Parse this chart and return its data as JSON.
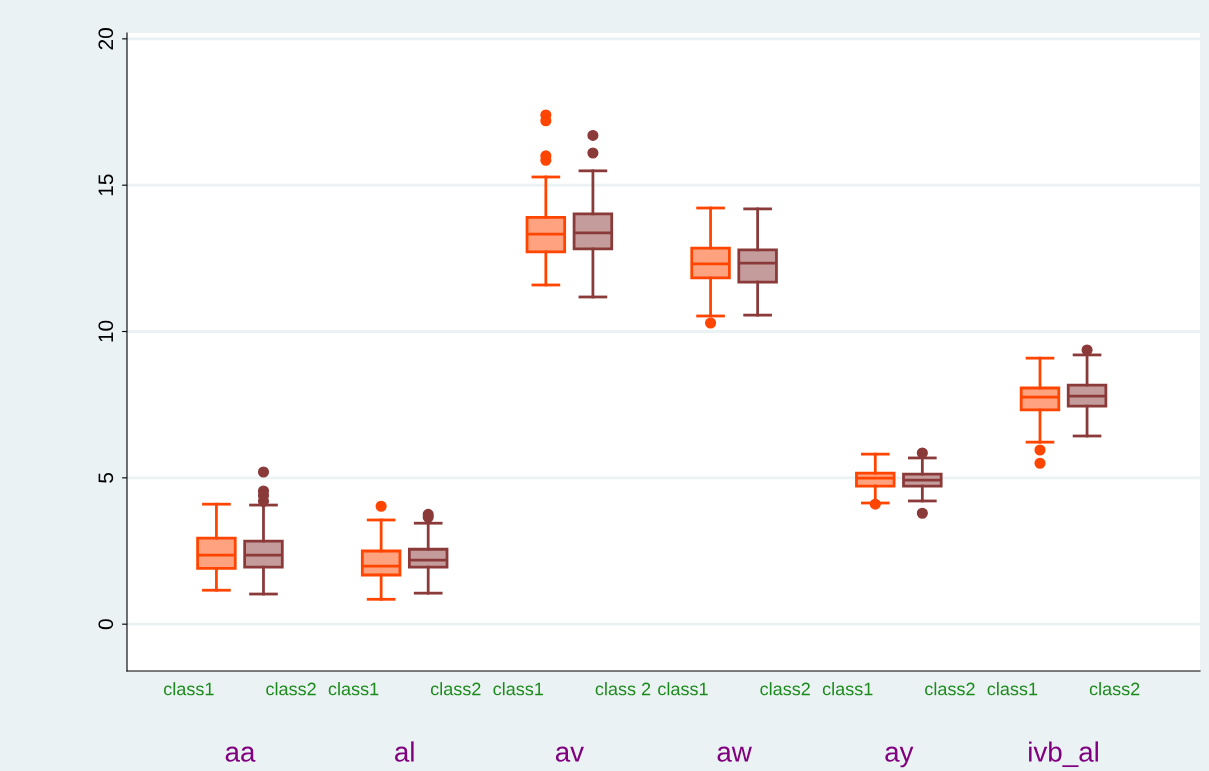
{
  "chart_data": {
    "type": "box",
    "categories": [
      "class1",
      "class2",
      "class1",
      "class2",
      "class1",
      "class 2",
      "class1",
      "class2",
      "class1",
      "class2",
      "class1",
      "class2"
    ],
    "annotations": [
      "aa",
      "al",
      "av",
      "aw",
      "ay",
      "ivb_al"
    ],
    "ylim": [
      -1.6,
      20.2
    ],
    "yticks": [
      0,
      5,
      10,
      15,
      20
    ],
    "grid": "y",
    "colors": [
      "#ff4500",
      "#8b3a3a",
      "#ff4500",
      "#8b3a3a",
      "#ff4500",
      "#8b3a3a",
      "#ff4500",
      "#8b3a3a",
      "#ff4500",
      "#8b3a3a",
      "#ff4500",
      "#8b3a3a"
    ],
    "boxes": [
      {
        "low": 1.16,
        "q1": 1.91,
        "median": 2.36,
        "q3": 2.94,
        "high": 4.1
      },
      {
        "low": 1.03,
        "q1": 1.95,
        "median": 2.36,
        "q3": 2.84,
        "high": 4.07,
        "outliers": [
          5.2,
          4.55,
          4.4,
          4.2
        ]
      },
      {
        "low": 0.85,
        "q1": 1.68,
        "median": 1.98,
        "q3": 2.5,
        "high": 3.56,
        "outliers": [
          4.03
        ]
      },
      {
        "low": 1.06,
        "q1": 1.95,
        "median": 2.19,
        "q3": 2.56,
        "high": 3.45,
        "outliers": [
          3.75,
          3.65
        ]
      },
      {
        "low": 11.59,
        "q1": 12.72,
        "median": 13.33,
        "q3": 13.9,
        "high": 15.28,
        "outliers": [
          17.4,
          17.2,
          16.0,
          15.85
        ]
      },
      {
        "low": 11.18,
        "q1": 12.82,
        "median": 13.37,
        "q3": 14.02,
        "high": 15.49,
        "outliers": [
          16.7,
          16.1
        ]
      },
      {
        "low": 10.53,
        "q1": 11.83,
        "median": 12.31,
        "q3": 12.85,
        "high": 14.22,
        "outliers": [
          10.29
        ]
      },
      {
        "low": 10.56,
        "q1": 11.69,
        "median": 12.34,
        "q3": 12.79,
        "high": 14.19
      },
      {
        "low": 4.14,
        "q1": 4.72,
        "median": 4.99,
        "q3": 5.16,
        "high": 5.81,
        "outliers": [
          4.1
        ]
      },
      {
        "low": 4.21,
        "q1": 4.72,
        "median": 4.92,
        "q3": 5.13,
        "high": 5.68,
        "outliers": [
          5.85,
          3.79
        ]
      },
      {
        "low": 6.22,
        "q1": 7.32,
        "median": 7.76,
        "q3": 8.07,
        "high": 9.09,
        "outliers": [
          5.95,
          5.5
        ]
      },
      {
        "low": 6.43,
        "q1": 7.45,
        "median": 7.79,
        "q3": 8.17,
        "high": 9.2,
        "outliers": [
          9.37
        ]
      }
    ]
  }
}
